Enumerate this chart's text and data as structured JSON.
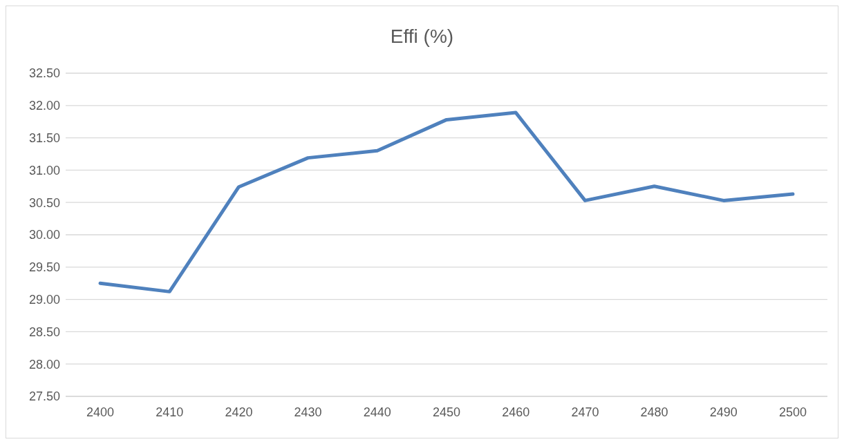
{
  "chart_data": {
    "type": "line",
    "title": "Effi (%)",
    "categories": [
      "2400",
      "2410",
      "2420",
      "2430",
      "2440",
      "2450",
      "2460",
      "2470",
      "2480",
      "2490",
      "2500"
    ],
    "series": [
      {
        "color": "#4f81bd",
        "values": [
          29.25,
          29.12,
          30.74,
          31.19,
          31.3,
          31.78,
          31.89,
          30.53,
          30.75,
          30.53,
          30.63
        ]
      }
    ],
    "ylim": [
      27.5,
      32.5
    ],
    "yticks": [
      {
        "value": 27.5,
        "label": "27.50"
      },
      {
        "value": 28,
        "label": "28.00"
      },
      {
        "value": 28.5,
        "label": "28.50"
      },
      {
        "value": 29,
        "label": "29.00"
      },
      {
        "value": 29.5,
        "label": "29.50"
      },
      {
        "value": 30,
        "label": "30.00"
      },
      {
        "value": 30.5,
        "label": "30.50"
      },
      {
        "value": 31,
        "label": "31.00"
      },
      {
        "value": 31.5,
        "label": "31.50"
      },
      {
        "value": 32,
        "label": "32.00"
      },
      {
        "value": 32.5,
        "label": "32.50"
      }
    ],
    "grid": "y",
    "legend": false,
    "marker": "none",
    "line_style": "solid"
  }
}
